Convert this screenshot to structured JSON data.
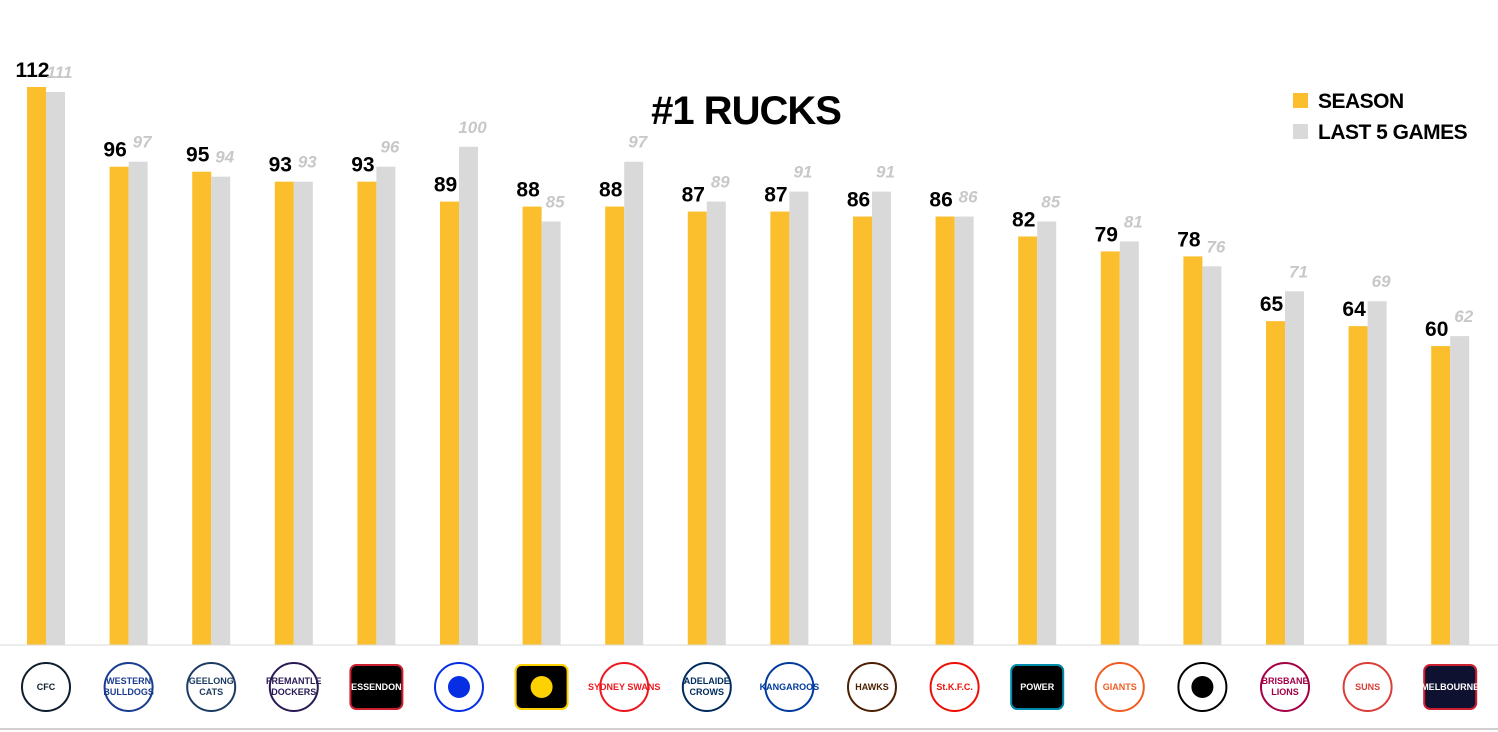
{
  "chart_data": {
    "type": "bar",
    "title": "#1 RUCKS",
    "legend_position": "top-right",
    "grid": false,
    "ylim": [
      0,
      112
    ],
    "categories": [
      "Carlton",
      "Western Bulldogs",
      "Geelong Cats",
      "Fremantle Dockers",
      "Essendon",
      "West Coast Eagles",
      "Richmond",
      "Sydney Swans",
      "Adelaide Crows",
      "North Melbourne Kangaroos",
      "Hawthorn Hawks",
      "St Kilda",
      "Port Adelaide Power",
      "GWS Giants",
      "Collingwood",
      "Brisbane Lions",
      "Gold Coast Suns",
      "Melbourne"
    ],
    "series": [
      {
        "name": "SEASON",
        "color": "#FBBF2D",
        "values": [
          112,
          96,
          95,
          93,
          93,
          89,
          88,
          88,
          87,
          87,
          86,
          86,
          82,
          79,
          78,
          65,
          64,
          60
        ]
      },
      {
        "name": "LAST 5 GAMES",
        "color": "#D9D9D9",
        "values": [
          111,
          97,
          94,
          93,
          96,
          100,
          85,
          97,
          89,
          91,
          91,
          86,
          85,
          81,
          76,
          71,
          69,
          62
        ]
      }
    ]
  },
  "logos": [
    {
      "icon": "carlton-logo-icon",
      "text": [
        "CFC"
      ],
      "bg": "#ffffff",
      "fg": "#0e1e2d"
    },
    {
      "icon": "bulldogs-logo-icon",
      "text": [
        "WESTERN",
        "BULLDOGS"
      ],
      "bg": "#ffffff",
      "fg": "#1a3d8f"
    },
    {
      "icon": "cats-logo-icon",
      "text": [
        "GEELONG",
        "CATS"
      ],
      "bg": "#ffffff",
      "fg": "#1c3c63"
    },
    {
      "icon": "dockers-logo-icon",
      "text": [
        "FREMANTLE",
        "DOCKERS"
      ],
      "bg": "#ffffff",
      "fg": "#2a1a54"
    },
    {
      "icon": "essendon-logo-icon",
      "text": [
        "ESSENDON"
      ],
      "bg": "#000000",
      "fg": "#cc2031"
    },
    {
      "icon": "eagles-logo-icon",
      "text": [],
      "bg": "#ffffff",
      "fg": "#062ee2"
    },
    {
      "icon": "tigers-logo-icon",
      "text": [],
      "bg": "#000000",
      "fg": "#fed102"
    },
    {
      "icon": "swans-logo-icon",
      "text": [
        "SYDNEY SWANS"
      ],
      "bg": "#ffffff",
      "fg": "#ed171f"
    },
    {
      "icon": "crows-logo-icon",
      "text": [
        "ADELAIDE",
        "CROWS"
      ],
      "bg": "#ffffff",
      "fg": "#002b5c"
    },
    {
      "icon": "kangaroos-logo-icon",
      "text": [
        "KANGAROOS"
      ],
      "bg": "#ffffff",
      "fg": "#013b9f"
    },
    {
      "icon": "hawks-logo-icon",
      "text": [
        "HAWKS"
      ],
      "bg": "#ffffff",
      "fg": "#4d2004"
    },
    {
      "icon": "stkilda-logo-icon",
      "text": [
        "St.K.F.C."
      ],
      "bg": "#ffffff",
      "fg": "#ed0f05"
    },
    {
      "icon": "power-logo-icon",
      "text": [
        "POWER"
      ],
      "bg": "#000000",
      "fg": "#008aab"
    },
    {
      "icon": "giants-logo-icon",
      "text": [
        "GIANTS"
      ],
      "bg": "#ffffff",
      "fg": "#f15c22"
    },
    {
      "icon": "magpies-logo-icon",
      "text": [],
      "bg": "#ffffff",
      "fg": "#000000"
    },
    {
      "icon": "lions-logo-icon",
      "text": [
        "BRISBANE",
        "LIONS"
      ],
      "bg": "#ffffff",
      "fg": "#a30046"
    },
    {
      "icon": "suns-logo-icon",
      "text": [
        "SUNS"
      ],
      "bg": "#ffffff",
      "fg": "#d93e39"
    },
    {
      "icon": "melbourne-logo-icon",
      "text": [
        "MELBOURNE"
      ],
      "bg": "#0f1131",
      "fg": "#cc2031"
    }
  ]
}
